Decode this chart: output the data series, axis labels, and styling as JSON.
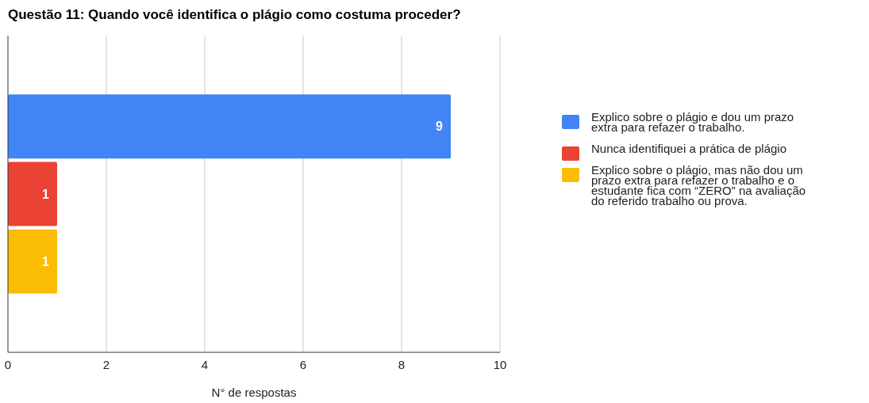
{
  "chart_data": {
    "type": "bar",
    "title": "Questão 11:  Quando você identifica o plágio como costuma proceder?",
    "xlabel": "N° de respostas",
    "orientation": "horizontal",
    "categories": [
      null
    ],
    "series": [
      {
        "name": "Explico sobre o plágio e dou um prazo extra para refazer o trabalho.",
        "color": "#4285f4",
        "values": [
          9
        ]
      },
      {
        "name": "Nunca identifiquei a prática de plágio",
        "color": "#ea4335",
        "values": [
          1
        ]
      },
      {
        "name": "Explico sobre o plágio, mas não dou um prazo extra para refazer o trabalho e o estudante fica com “ZERO” na avaliação do referido trabalho ou prova.",
        "color": "#fbbc04",
        "values": [
          1
        ]
      }
    ],
    "xlim": [
      0,
      10
    ],
    "xticks": [
      0,
      2,
      4,
      6,
      8,
      10
    ],
    "grid": "x",
    "legend": "right",
    "data_labels": true
  }
}
